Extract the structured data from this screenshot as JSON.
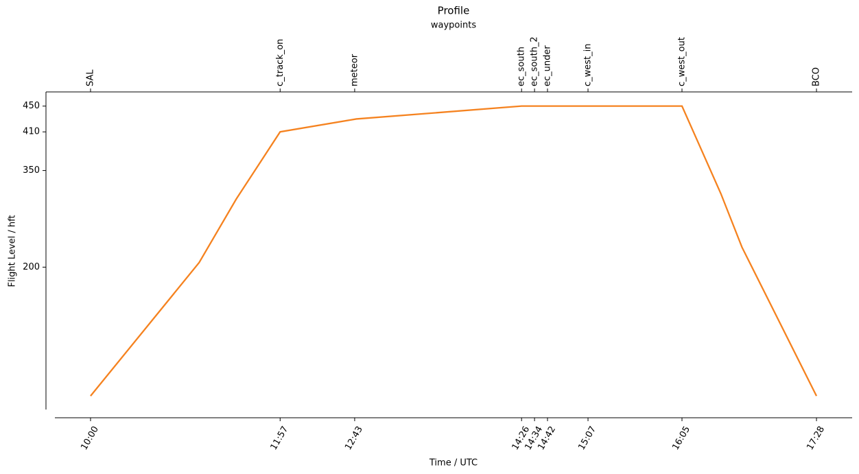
{
  "chart_data": {
    "type": "line",
    "title": "Profile",
    "top_axis_label": "waypoints",
    "x_label": "Time / UTC",
    "y_label": "Flight Level / hft",
    "x": [
      600,
      667,
      690,
      717,
      764,
      866,
      965,
      989,
      1002,
      1048
    ],
    "series": [
      {
        "color": "#f5821f",
        "values": [
          0,
          207,
          306,
          410,
          430,
          450,
          450,
          314,
          231,
          0
        ]
      }
    ],
    "xlim": [
      578,
      1070
    ],
    "ylim": [
      -21,
      472
    ],
    "xticks": [
      {
        "value": 600,
        "label": "10:00"
      },
      {
        "value": 717,
        "label": "11:57"
      },
      {
        "value": 763,
        "label": "12:43"
      },
      {
        "value": 866,
        "label": "14:26"
      },
      {
        "value": 874,
        "label": "14:34"
      },
      {
        "value": 882,
        "label": "14:42"
      },
      {
        "value": 907,
        "label": "15:07"
      },
      {
        "value": 965,
        "label": "16:05"
      },
      {
        "value": 1048,
        "label": "17:28"
      }
    ],
    "waypoints": [
      {
        "value": 600,
        "label": "SAL"
      },
      {
        "value": 717,
        "label": "c_track_on"
      },
      {
        "value": 763,
        "label": "meteor"
      },
      {
        "value": 866,
        "label": "ec_south"
      },
      {
        "value": 874,
        "label": "ec_south_2"
      },
      {
        "value": 882,
        "label": "ec_under"
      },
      {
        "value": 907,
        "label": "c_west_in"
      },
      {
        "value": 965,
        "label": "c_west_out"
      },
      {
        "value": 1048,
        "label": "BCO"
      }
    ],
    "yticks": [
      200,
      350,
      410,
      450
    ],
    "grid": false
  }
}
